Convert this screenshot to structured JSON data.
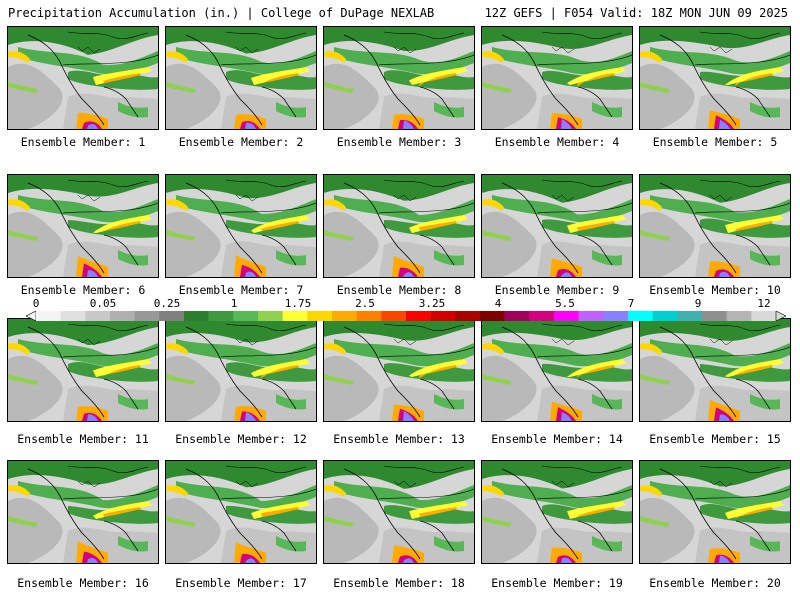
{
  "header": {
    "title": "Precipitation Accumulation (in.) | College of DuPage NEXLAB",
    "run_info": "12Z GEFS | F054 Valid: 18Z MON JUN 09 2025"
  },
  "colorbar": {
    "tick_labels": [
      "0",
      "0.05",
      "0.25",
      "1",
      "1.75",
      "2.5",
      "3.25",
      "4",
      "5.5",
      "7",
      "9",
      "12"
    ],
    "colors": [
      "#f4f4f4",
      "#e0e0e0",
      "#c8c8c8",
      "#b0b0b0",
      "#989898",
      "#808080",
      "#2e7d2e",
      "#3f9a3f",
      "#58b858",
      "#8fd14f",
      "#ffff33",
      "#ffd700",
      "#ffaa00",
      "#ff7f00",
      "#ff4500",
      "#ff0000",
      "#d40000",
      "#aa0000",
      "#800000",
      "#a0005a",
      "#d4007f",
      "#ff00ff",
      "#c060ff",
      "#8a7fff",
      "#00ffff",
      "#00d0d0",
      "#40b0b0",
      "#8f8f8f",
      "#b5b5b5",
      "#d9d9d9"
    ]
  },
  "members": [
    {
      "label": "Ensemble Member: 1"
    },
    {
      "label": "Ensemble Member: 2"
    },
    {
      "label": "Ensemble Member: 3"
    },
    {
      "label": "Ensemble Member: 4"
    },
    {
      "label": "Ensemble Member: 5"
    },
    {
      "label": "Ensemble Member: 6"
    },
    {
      "label": "Ensemble Member: 7"
    },
    {
      "label": "Ensemble Member: 8"
    },
    {
      "label": "Ensemble Member: 9"
    },
    {
      "label": "Ensemble Member: 10"
    },
    {
      "label": "Ensemble Member: 11"
    },
    {
      "label": "Ensemble Member: 12"
    },
    {
      "label": "Ensemble Member: 13"
    },
    {
      "label": "Ensemble Member: 14"
    },
    {
      "label": "Ensemble Member: 15"
    },
    {
      "label": "Ensemble Member: 16"
    },
    {
      "label": "Ensemble Member: 17"
    },
    {
      "label": "Ensemble Member: 18"
    },
    {
      "label": "Ensemble Member: 19"
    },
    {
      "label": "Ensemble Member: 20"
    }
  ]
}
